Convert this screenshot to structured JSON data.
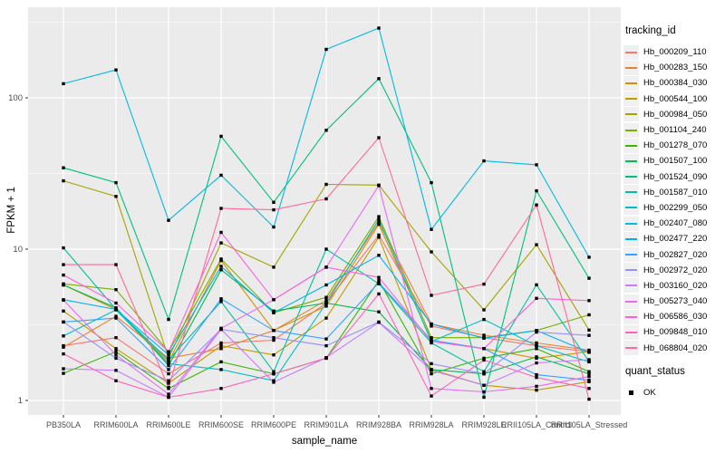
{
  "figure": {
    "background": "#FFFFFF",
    "panel_background": "#EBEBEB",
    "gridline_color": "#FFFFFF",
    "tick_color": "#333333",
    "tick_label_color": "#4D4D4D",
    "point_color": "#000000",
    "legend_key_background": "#F0F0F0"
  },
  "legend": {
    "tracking_title": "tracking_id",
    "quant_title": "quant_status",
    "quant_items": [
      {
        "label": "OK",
        "marker": "black-square"
      }
    ]
  },
  "chart_data": {
    "type": "line",
    "title": "",
    "xlabel": "sample_name",
    "ylabel": "FPKM + 1",
    "y_scale": "log10",
    "y_ticks": [
      1,
      10,
      100
    ],
    "y_minor_ticks": [
      3.162,
      31.62,
      316.2
    ],
    "ylim": [
      0.85,
      380
    ],
    "grid": true,
    "legend_position": "right",
    "point_marker": "small-black-square",
    "categories": [
      "PB350LA",
      "RRIM600LA",
      "RRIM600LE",
      "RRIM600SE",
      "RRIM600PE",
      "RRIM901LA",
      "RRIM928BA",
      "RRIM928LA",
      "RRIM928LE",
      "RRII105LA_Control",
      "RRII105LA_Stressed"
    ],
    "series": [
      {
        "name": "Hb_000209_110",
        "color": "#F8766D",
        "values": [
          2.3,
          2.6,
          1.5,
          2.4,
          2.5,
          4.4,
          12.4,
          3.1,
          2.6,
          2.3,
          2.1
        ]
      },
      {
        "name": "Hb_000283_150",
        "color": "#EA8331",
        "values": [
          2.25,
          3.6,
          1.9,
          2.2,
          2.9,
          4.6,
          15.0,
          3.2,
          2.7,
          2.4,
          2.15
        ]
      },
      {
        "name": "Hb_000384_030",
        "color": "#D89000",
        "values": [
          5.8,
          4.0,
          1.8,
          8.4,
          2.9,
          4.2,
          14.6,
          2.5,
          2.2,
          1.9,
          2.1
        ]
      },
      {
        "name": "Hb_000544_100",
        "color": "#C09B00",
        "values": [
          3.9,
          2.2,
          1.3,
          2.3,
          2.0,
          3.5,
          12.0,
          1.6,
          1.26,
          1.17,
          1.33
        ]
      },
      {
        "name": "Hb_000984_050",
        "color": "#A3A500",
        "values": [
          28.3,
          22.3,
          1.9,
          11.0,
          7.6,
          26.8,
          26.5,
          9.6,
          3.97,
          10.7,
          2.92
        ]
      },
      {
        "name": "Hb_001104_240",
        "color": "#7CAE00",
        "values": [
          5.9,
          5.4,
          2.1,
          8.6,
          3.8,
          4.8,
          16.4,
          2.6,
          2.6,
          2.9,
          3.68
        ]
      },
      {
        "name": "Hb_001278_070",
        "color": "#39B600",
        "values": [
          1.51,
          2.1,
          1.2,
          1.8,
          1.5,
          1.9,
          6.2,
          1.5,
          1.9,
          2.2,
          1.55
        ]
      },
      {
        "name": "Hb_001507_100",
        "color": "#00BB4E",
        "values": [
          5.8,
          4.1,
          1.7,
          7.3,
          3.9,
          4.4,
          3.85,
          1.6,
          1.5,
          1.94,
          1.5
        ]
      },
      {
        "name": "Hb_001524_090",
        "color": "#00BF7D",
        "values": [
          34.5,
          27.5,
          3.43,
          55.7,
          20.4,
          61.0,
          134.0,
          27.5,
          1.05,
          24.3,
          6.42
        ]
      },
      {
        "name": "Hb_001587_010",
        "color": "#00C1A3",
        "values": [
          10.2,
          4.0,
          1.85,
          4.5,
          1.55,
          10.0,
          5.9,
          2.4,
          1.55,
          5.81,
          1.81
        ]
      },
      {
        "name": "Hb_002299_050",
        "color": "#00BFC4",
        "values": [
          2.67,
          3.97,
          1.75,
          1.6,
          1.35,
          4.4,
          15.7,
          2.45,
          3.43,
          2.3,
          1.8
        ]
      },
      {
        "name": "Hb_002407_080",
        "color": "#00BAE0",
        "values": [
          124.0,
          153.0,
          15.5,
          30.8,
          14.0,
          209.0,
          289.0,
          13.5,
          38.3,
          36.1,
          8.85
        ]
      },
      {
        "name": "Hb_002477_220",
        "color": "#00B0F6",
        "values": [
          4.63,
          4.0,
          2.0,
          7.7,
          3.8,
          5.8,
          9.1,
          3.2,
          2.58,
          2.9,
          2.08
        ]
      },
      {
        "name": "Hb_002827_020",
        "color": "#35A2FF",
        "values": [
          3.3,
          3.5,
          1.6,
          4.7,
          2.9,
          2.55,
          6.0,
          2.5,
          2.2,
          1.48,
          1.36
        ]
      },
      {
        "name": "Hb_002972_020",
        "color": "#9590FF",
        "values": [
          3.3,
          1.9,
          1.35,
          2.95,
          2.6,
          2.3,
          3.3,
          1.75,
          1.5,
          2.83,
          2.69
        ]
      },
      {
        "name": "Hb_003160_020",
        "color": "#C77CFF",
        "values": [
          1.62,
          1.58,
          1.05,
          2.95,
          1.32,
          1.92,
          3.28,
          1.58,
          1.26,
          1.77,
          1.86
        ]
      },
      {
        "name": "Hb_005273_040",
        "color": "#E76BF3",
        "values": [
          4.6,
          2.0,
          1.1,
          3.0,
          4.63,
          7.6,
          26.3,
          1.2,
          1.14,
          1.24,
          1.44
        ]
      },
      {
        "name": "Hb_006586_030",
        "color": "#FA62DB",
        "values": [
          6.74,
          4.4,
          2.1,
          12.9,
          4.63,
          7.6,
          6.5,
          2.45,
          2.2,
          4.73,
          4.57
        ]
      },
      {
        "name": "Hb_009848_010",
        "color": "#FF62BC",
        "values": [
          2.03,
          1.35,
          1.05,
          1.2,
          1.5,
          1.9,
          5.06,
          1.07,
          1.85,
          1.42,
          1.2
        ]
      },
      {
        "name": "Hb_068804_020",
        "color": "#FF6A98",
        "values": [
          7.9,
          7.9,
          1.22,
          18.6,
          18.2,
          21.5,
          54.5,
          4.95,
          5.87,
          19.6,
          1.02
        ]
      }
    ]
  }
}
